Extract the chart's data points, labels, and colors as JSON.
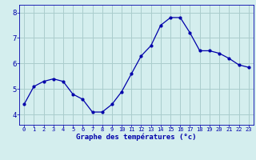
{
  "hours": [
    0,
    1,
    2,
    3,
    4,
    5,
    6,
    7,
    8,
    9,
    10,
    11,
    12,
    13,
    14,
    15,
    16,
    17,
    18,
    19,
    20,
    21,
    22,
    23
  ],
  "temps": [
    4.4,
    5.1,
    5.3,
    5.4,
    5.3,
    4.8,
    4.6,
    4.1,
    4.1,
    4.4,
    4.9,
    5.6,
    6.3,
    6.7,
    7.5,
    7.8,
    7.8,
    7.2,
    6.5,
    6.5,
    6.4,
    6.2,
    5.95,
    5.85
  ],
  "line_color": "#0000aa",
  "bg_color": "#d4eeee",
  "grid_color": "#aacccc",
  "axis_label_color": "#0000aa",
  "xlabel": "Graphe des températures (°c)",
  "yticks": [
    4,
    5,
    6,
    7,
    8
  ],
  "ylim": [
    3.6,
    8.3
  ],
  "xlim": [
    -0.5,
    23.5
  ],
  "marker": "o",
  "markersize": 2.0,
  "linewidth": 0.9
}
